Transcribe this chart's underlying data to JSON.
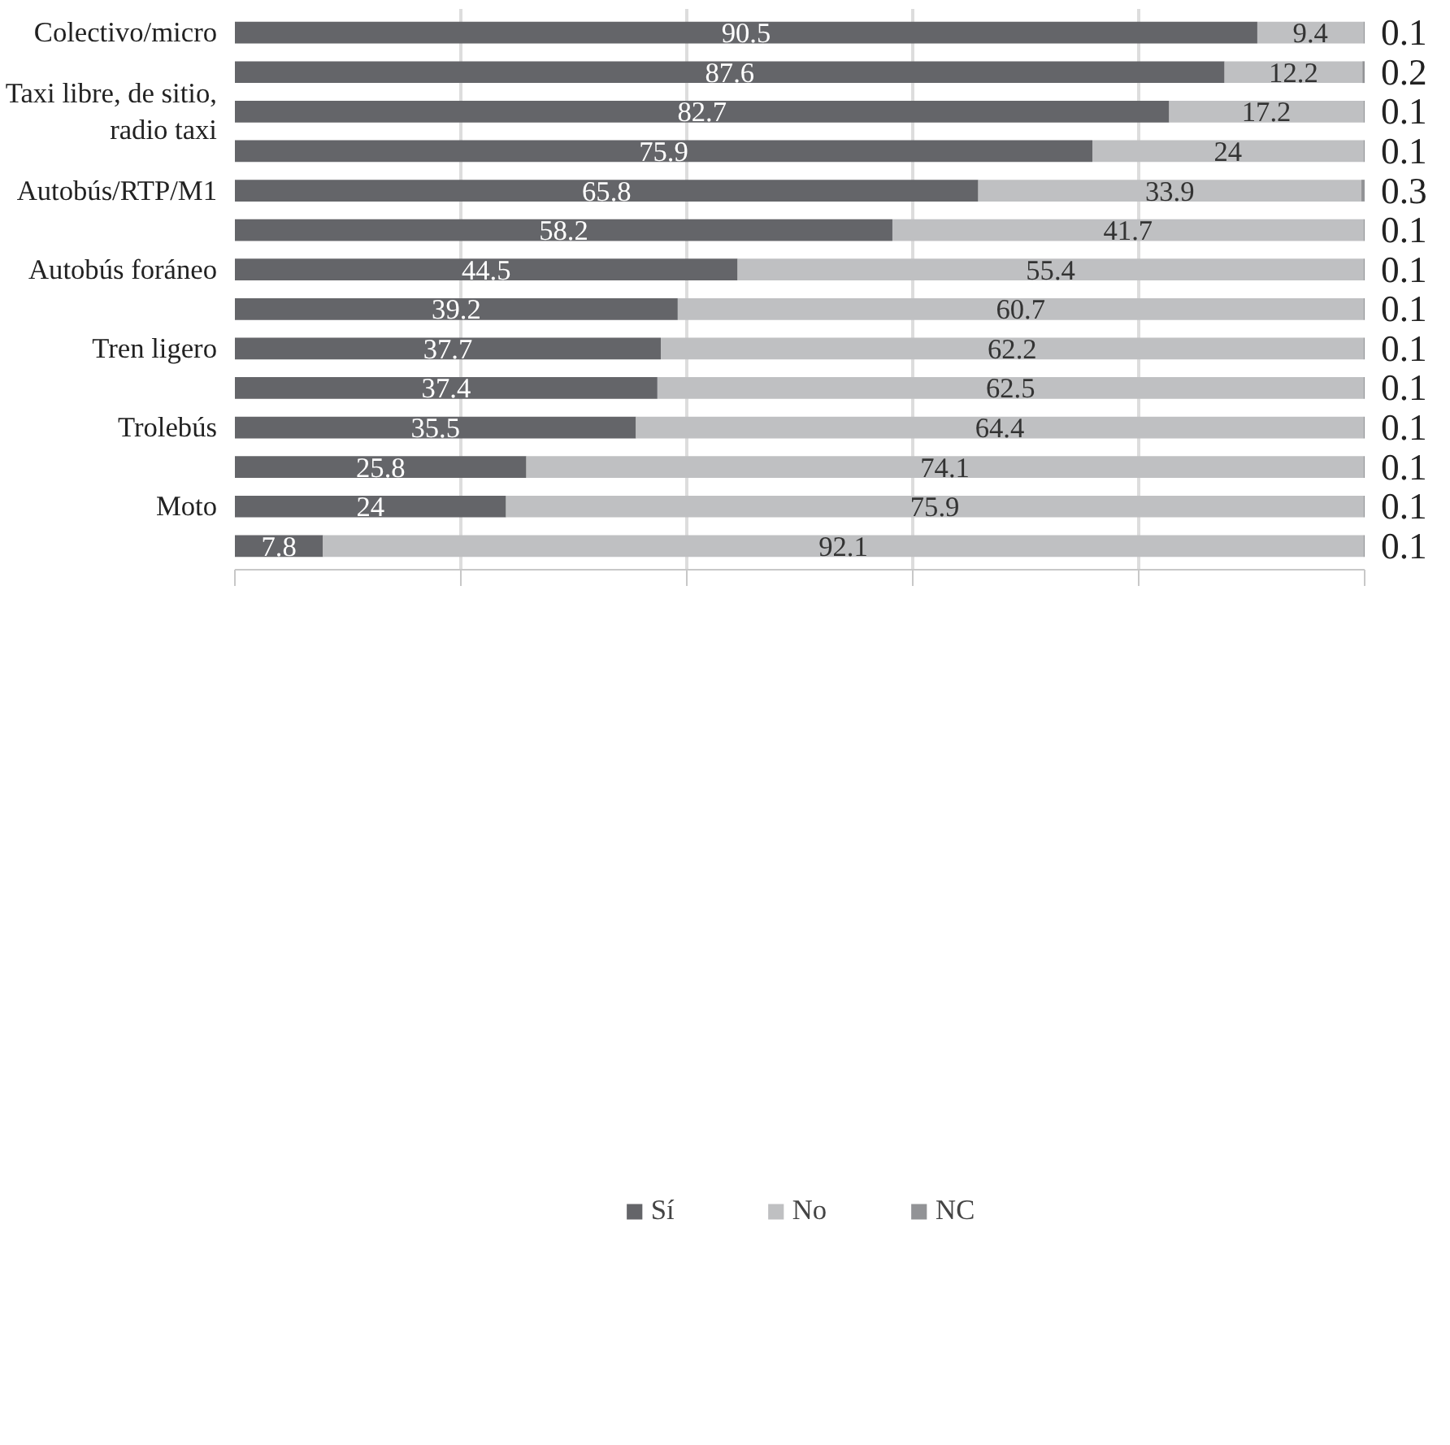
{
  "chart_data": {
    "type": "bar",
    "orientation": "horizontal",
    "stacked": true,
    "categories": [
      "Colectivo/micro",
      null,
      "Taxi libre, de sitio, radio taxi",
      null,
      "Autobús/RTP/M1",
      null,
      "Autobús foráneo",
      null,
      "Tren ligero",
      null,
      "Trolebús",
      null,
      "Moto",
      null
    ],
    "series": [
      {
        "name": "Sí",
        "color": "#646569",
        "values": [
          90.5,
          87.6,
          82.7,
          75.9,
          65.8,
          58.2,
          44.5,
          39.2,
          37.7,
          37.4,
          35.5,
          25.8,
          24,
          7.8
        ]
      },
      {
        "name": "No",
        "color": "#bfc0c2",
        "values": [
          9.4,
          12.2,
          17.2,
          24,
          33.9,
          41.7,
          55.4,
          60.7,
          62.2,
          62.5,
          64.4,
          74.1,
          75.9,
          92.1
        ]
      },
      {
        "name": "NC",
        "color": "#929396",
        "values": [
          0.1,
          0.2,
          0.1,
          0.1,
          0.3,
          0.1,
          0.1,
          0.1,
          0.1,
          0.1,
          0.1,
          0.1,
          0.1,
          0.1
        ]
      }
    ],
    "xlim": [
      0,
      100
    ],
    "xticks": [
      {
        "value": 0,
        "label": null
      },
      {
        "value": 20,
        "label": null
      },
      {
        "value": 40,
        "label": null
      },
      {
        "value": 60,
        "label": null
      },
      {
        "value": 80,
        "label": null
      },
      {
        "value": 100,
        "label": null
      }
    ],
    "tick_labels": "y",
    "grid": "x",
    "data_labels": true,
    "legend": "bottom"
  }
}
